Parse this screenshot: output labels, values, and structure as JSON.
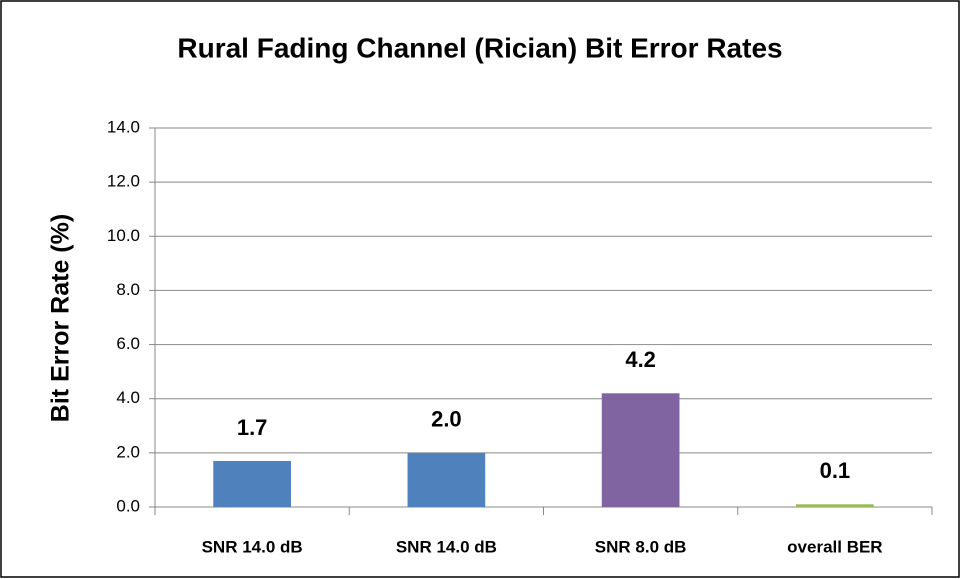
{
  "chart_data": {
    "type": "bar",
    "title": "Rural Fading Channel (Rician) Bit Error Rates",
    "y_label": "Bit Error Rate (%)",
    "categories": [
      "SNR 14.0 dB",
      "SNR 14.0 dB",
      "SNR 8.0 dB",
      "overall BER"
    ],
    "values": [
      1.7,
      2.0,
      4.2,
      0.1
    ],
    "value_labels": [
      "1.7",
      "2.0",
      "4.2",
      "0.1"
    ],
    "colors": [
      "#4f81bd",
      "#4f81bd",
      "#8064a2",
      "#9bbb59"
    ],
    "ylim": [
      0,
      14
    ],
    "yticks": [
      {
        "value": 0,
        "label": "0.0"
      },
      {
        "value": 2,
        "label": "2.0"
      },
      {
        "value": 4,
        "label": "4.0"
      },
      {
        "value": 6,
        "label": "6.0"
      },
      {
        "value": 8,
        "label": "8.0"
      },
      {
        "value": 10,
        "label": "10.0"
      },
      {
        "value": 12,
        "label": "12.0"
      },
      {
        "value": 14,
        "label": "14.0"
      }
    ],
    "grid": true
  }
}
